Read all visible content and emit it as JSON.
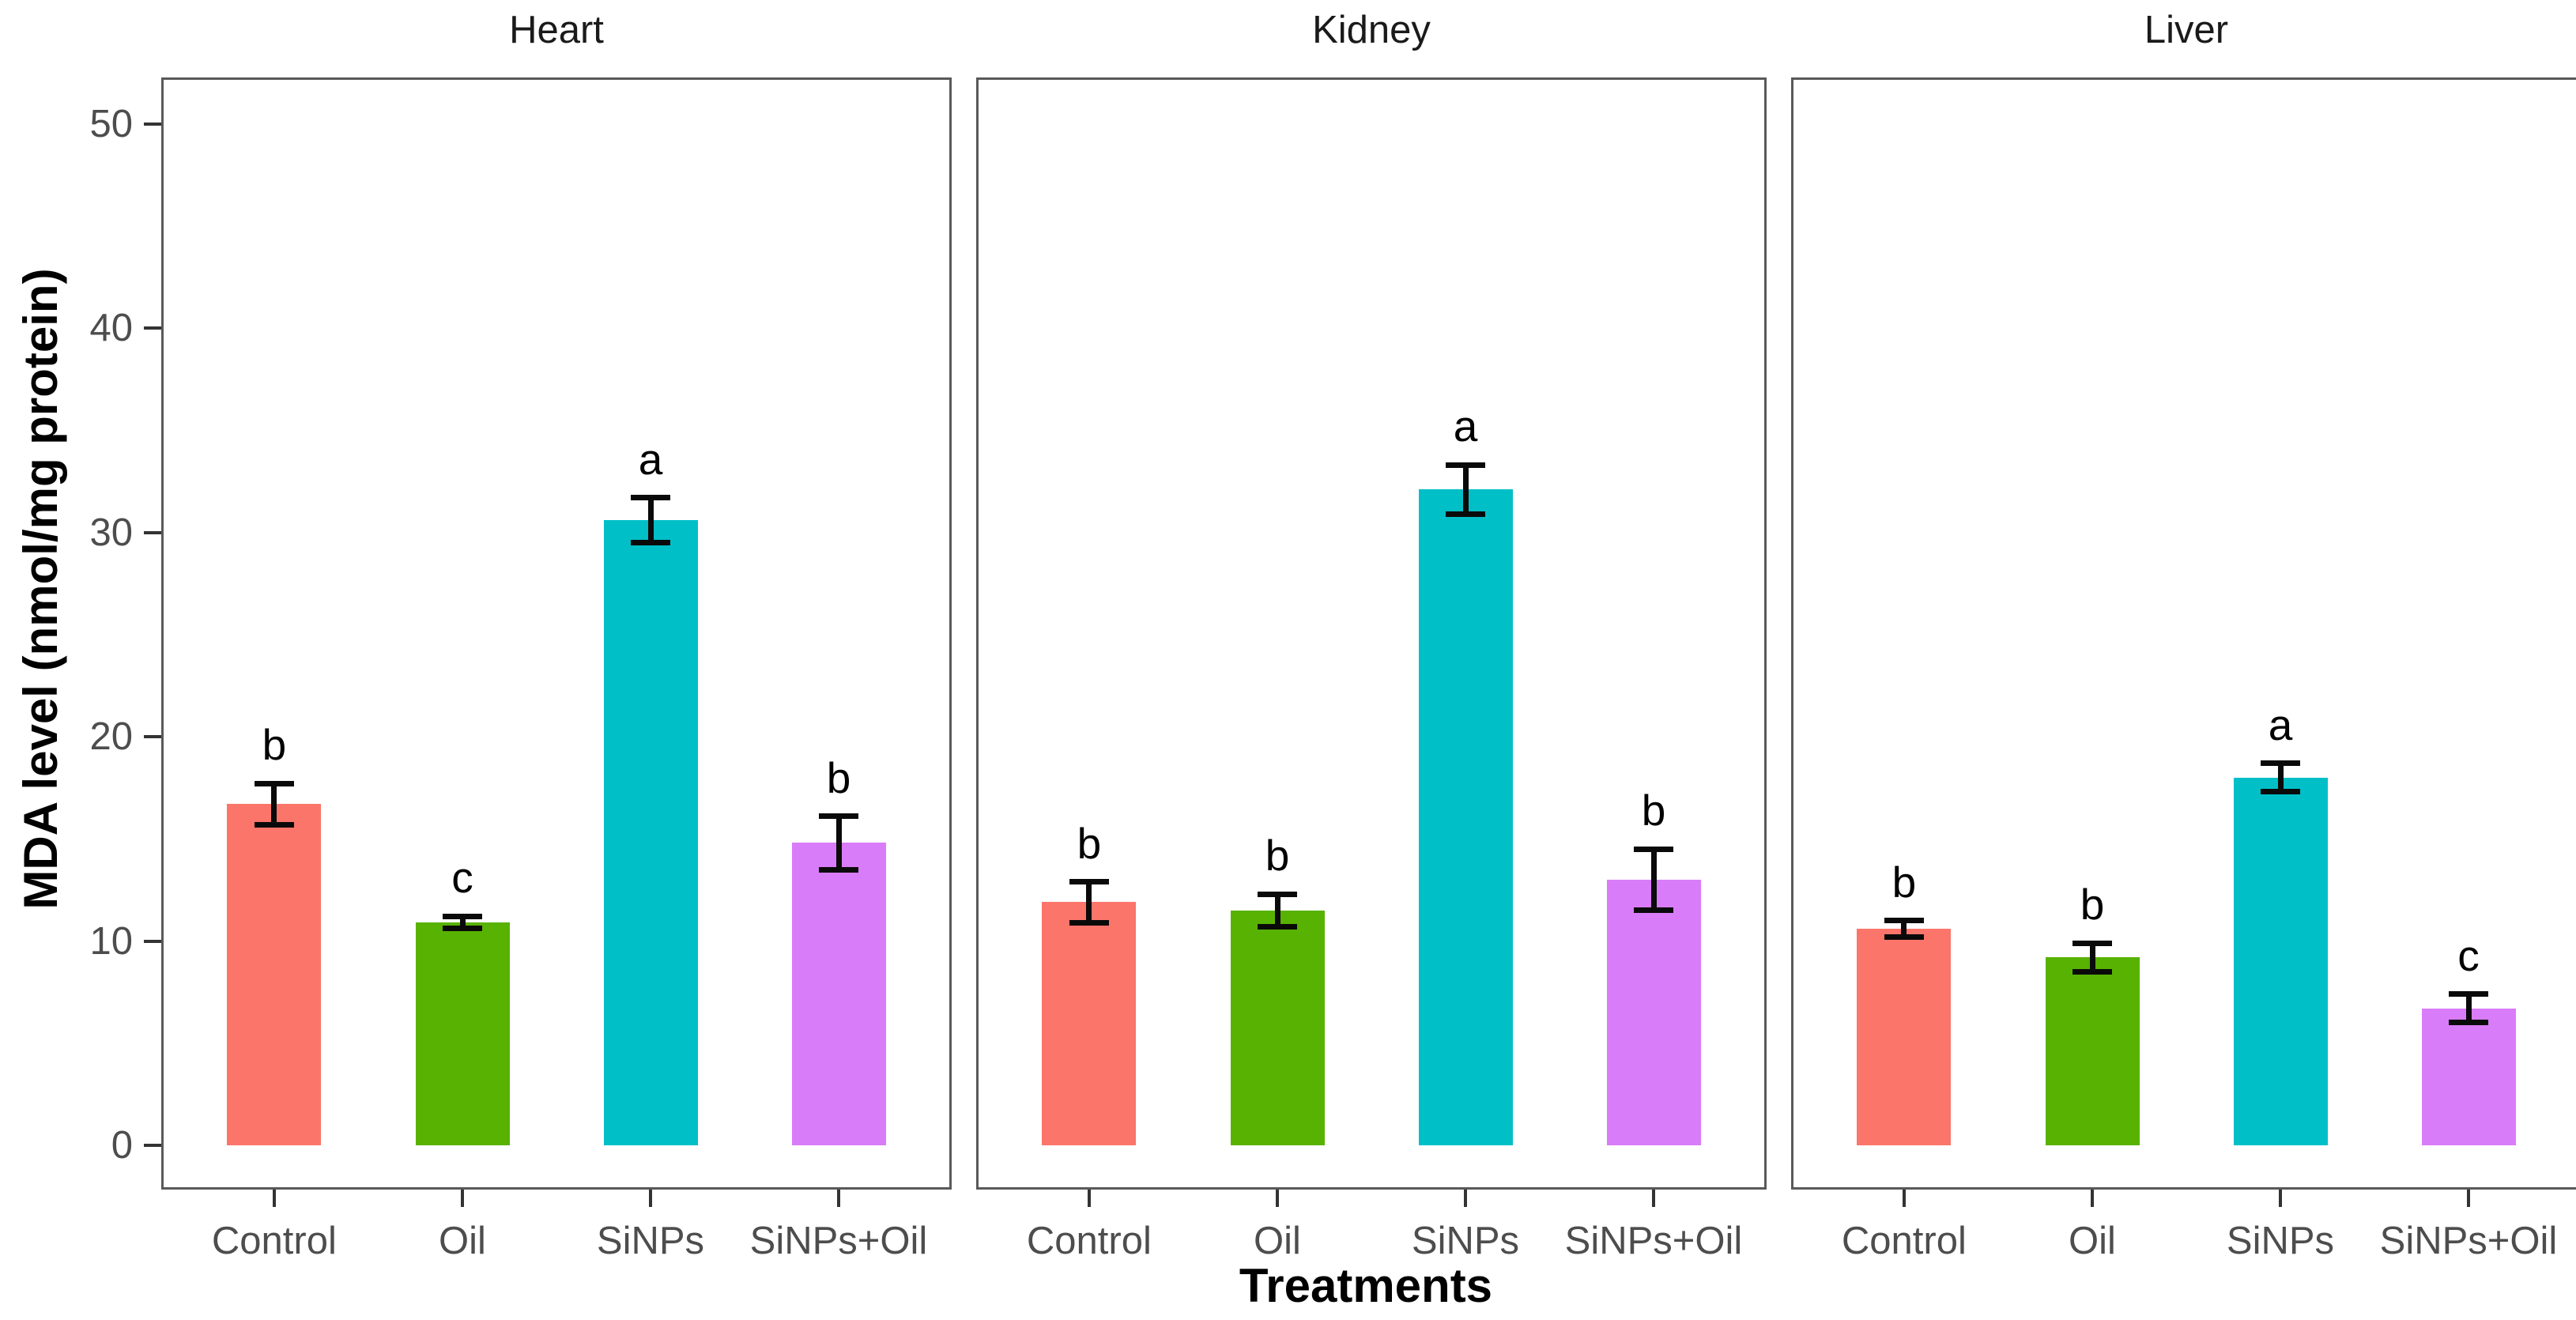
{
  "chart_data": {
    "type": "bar",
    "title": "",
    "ylabel": "MDA level (nmol/mg protein)",
    "xlabel": "Treatments",
    "categories": [
      "Control",
      "Oil",
      "SiNPs",
      "SiNPs+Oil"
    ],
    "bar_colors": [
      "#FB756B",
      "#58B202",
      "#00BFC7",
      "#D97CF9"
    ],
    "y_ticks": [
      0,
      10,
      20,
      30,
      40,
      50
    ],
    "ylim": [
      -2.17,
      52.26
    ],
    "grid": false,
    "legend": "none",
    "error_bar_style": "capped, mean ± SD",
    "facets": [
      {
        "label": "Heart",
        "bars": [
          {
            "category": "Control",
            "value": 16.7,
            "sd": 1.0,
            "letter": "b"
          },
          {
            "category": "Oil",
            "value": 10.9,
            "sd": 0.3,
            "letter": "c"
          },
          {
            "category": "SiNPs",
            "value": 30.6,
            "sd": 1.1,
            "letter": "a"
          },
          {
            "category": "SiNPs+Oil",
            "value": 14.8,
            "sd": 1.3,
            "letter": "b"
          }
        ]
      },
      {
        "label": "Kidney",
        "bars": [
          {
            "category": "Control",
            "value": 11.9,
            "sd": 1.0,
            "letter": "b"
          },
          {
            "category": "Oil",
            "value": 11.5,
            "sd": 0.8,
            "letter": "b"
          },
          {
            "category": "SiNPs",
            "value": 32.1,
            "sd": 1.2,
            "letter": "a"
          },
          {
            "category": "SiNPs+Oil",
            "value": 13.0,
            "sd": 1.5,
            "letter": "b"
          }
        ]
      },
      {
        "label": "Liver",
        "bars": [
          {
            "category": "Control",
            "value": 10.6,
            "sd": 0.4,
            "letter": "b"
          },
          {
            "category": "Oil",
            "value": 9.2,
            "sd": 0.7,
            "letter": "b"
          },
          {
            "category": "SiNPs",
            "value": 18.0,
            "sd": 0.7,
            "letter": "a"
          },
          {
            "category": "SiNPs+Oil",
            "value": 6.7,
            "sd": 0.7,
            "letter": "c"
          }
        ]
      }
    ]
  },
  "style": {
    "panel_border_color": "#595959",
    "tick_mark_color": "#333333",
    "tick_label_color": "#4D4D4D",
    "facet_title_color": "#1A1A1A",
    "error_bar_color": "#0A0A0A",
    "background": "#FFFFFF"
  }
}
